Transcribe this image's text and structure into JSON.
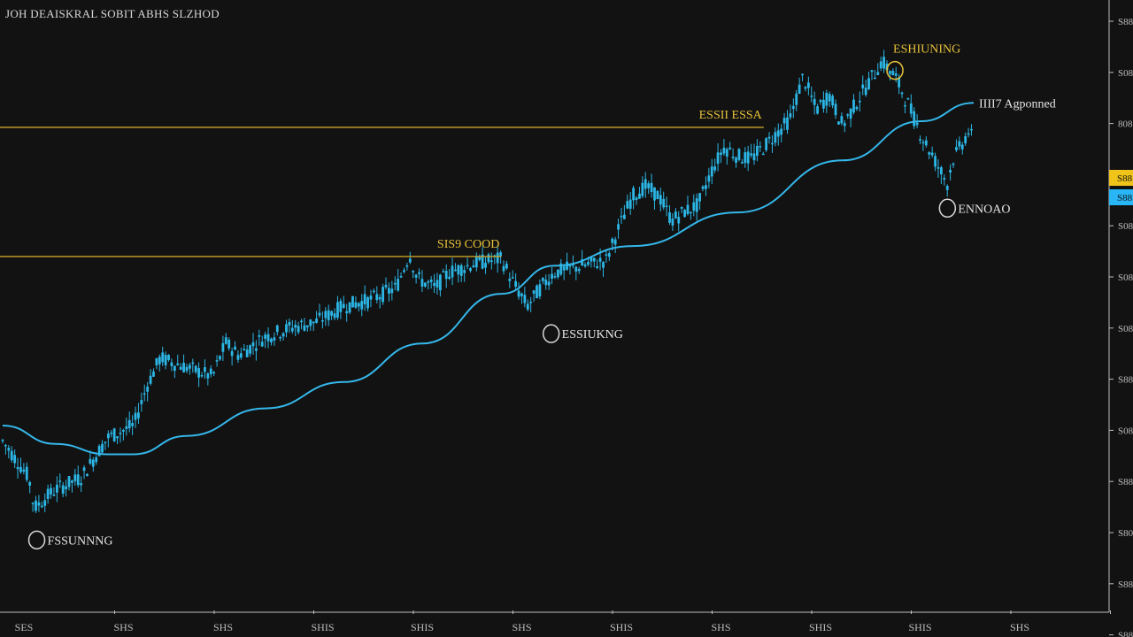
{
  "chart_data": {
    "type": "candlestick",
    "title": "JOH DEAISKRAL SOBIT  ABHS SLZHOD",
    "xlabel": "",
    "ylabel": "",
    "x_tick_labels": [
      "SES",
      "SHS",
      "SHS",
      "SHIS",
      "SHIS",
      "SHS",
      "SHIS",
      "SHS",
      "SHIS",
      "SHIS",
      "SHS"
    ],
    "y_tick_labels": [
      "S88",
      "S08",
      "808",
      "S08",
      "S08",
      "S08",
      "S08",
      "S88",
      "S08",
      "S88",
      "S80",
      "S88",
      "S88"
    ],
    "price_tag_labels": [
      "S88",
      "S88"
    ],
    "ylim": [
      0,
      100
    ],
    "grid": false,
    "colors": {
      "background": "#121212",
      "candle": "#2bb6e6",
      "ma_line": "#34b7ea",
      "level_line": "#c9a32a",
      "annotation": "#e8c23a",
      "axis": "#bdbdbd",
      "tag_yellow": "#f0c419",
      "tag_blue": "#29b6f6"
    },
    "moving_average": {
      "label": "IIII7 Agponned",
      "points": [
        [
          0,
          30.5
        ],
        [
          20,
          27.5
        ],
        [
          40,
          25.8
        ],
        [
          50,
          25.8
        ],
        [
          70,
          28.8
        ],
        [
          100,
          33.3
        ],
        [
          130,
          37.6
        ],
        [
          160,
          43.9
        ],
        [
          190,
          52
        ],
        [
          210,
          56.6
        ],
        [
          240,
          59.8
        ],
        [
          280,
          65.3
        ],
        [
          320,
          73.8
        ],
        [
          350,
          80.2
        ],
        [
          370,
          83.2
        ]
      ]
    },
    "levels": [
      {
        "label": "ESSII ESSA",
        "value": 79.2,
        "x_end": 290
      },
      {
        "label": "SIS9 COOD",
        "value": 58.1,
        "x_end": 190
      }
    ],
    "annotations": [
      {
        "label": "ESHIUNING",
        "x": 340,
        "y": 88.5
      },
      {
        "label": "ENNOAO",
        "x": 360,
        "y": 66.0
      },
      {
        "label": "ESSIUKNG",
        "x": 209,
        "y": 45.5
      },
      {
        "label": "FSSUNNNG",
        "x": 13,
        "y": 11.8
      }
    ],
    "price_points": [
      [
        0,
        28
      ],
      [
        5,
        25
      ],
      [
        10,
        22
      ],
      [
        12,
        17
      ],
      [
        20,
        20
      ],
      [
        30,
        22
      ],
      [
        40,
        28.5
      ],
      [
        50,
        30.5
      ],
      [
        55,
        37
      ],
      [
        60,
        41.5
      ],
      [
        70,
        40
      ],
      [
        80,
        38.5
      ],
      [
        85,
        44
      ],
      [
        90,
        42
      ],
      [
        100,
        45
      ],
      [
        110,
        46.5
      ],
      [
        120,
        47.5
      ],
      [
        130,
        50
      ],
      [
        140,
        51
      ],
      [
        150,
        53
      ],
      [
        155,
        58.5
      ],
      [
        158,
        54.5
      ],
      [
        165,
        53
      ],
      [
        170,
        55.5
      ],
      [
        180,
        57
      ],
      [
        190,
        57.7
      ],
      [
        195,
        53.5
      ],
      [
        200,
        50
      ],
      [
        205,
        53
      ],
      [
        210,
        55.5
      ],
      [
        220,
        56.5
      ],
      [
        230,
        57.5
      ],
      [
        235,
        63
      ],
      [
        240,
        68
      ],
      [
        245,
        69.5
      ],
      [
        250,
        68
      ],
      [
        255,
        64
      ],
      [
        260,
        65.5
      ],
      [
        265,
        66.5
      ],
      [
        270,
        72
      ],
      [
        275,
        76
      ],
      [
        280,
        74.5
      ],
      [
        285,
        74
      ],
      [
        290,
        76
      ],
      [
        300,
        80.5
      ],
      [
        305,
        87.5
      ],
      [
        310,
        82
      ],
      [
        315,
        84.5
      ],
      [
        320,
        79.5
      ],
      [
        325,
        83
      ],
      [
        330,
        86.5
      ],
      [
        335,
        90
      ],
      [
        340,
        87.5
      ],
      [
        345,
        83
      ],
      [
        350,
        78
      ],
      [
        355,
        74
      ],
      [
        360,
        70
      ],
      [
        362,
        74
      ],
      [
        365,
        76
      ],
      [
        368,
        78.5
      ],
      [
        370,
        77
      ]
    ]
  }
}
